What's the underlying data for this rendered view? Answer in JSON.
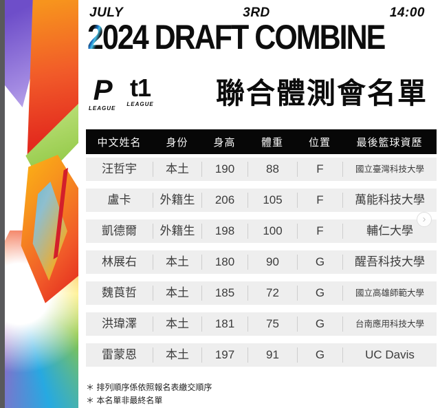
{
  "event": {
    "month": "JULY",
    "day": "3RD",
    "time": "14:00",
    "year_first": "2",
    "year_rest": "024 ",
    "title_rest": "DRAFT COMBINE"
  },
  "logos": {
    "p_league": {
      "glyph": "P",
      "label": "LEAGUE"
    },
    "t1_league": {
      "glyph": "t1",
      "label": "LEAGUE"
    }
  },
  "page_title": "聯合體測會名單",
  "table": {
    "headers": [
      "中文姓名",
      "身份",
      "身高",
      "體重",
      "位置",
      "最後籃球資歷"
    ],
    "rows": [
      [
        "汪哲宇",
        "本土",
        "190",
        "88",
        "F",
        "國立臺灣科技大學"
      ],
      [
        "盧卡",
        "外籍生",
        "206",
        "105",
        "F",
        "萬能科技大學"
      ],
      [
        "凱德爾",
        "外籍生",
        "198",
        "100",
        "F",
        "輔仁大學"
      ],
      [
        "林展右",
        "本土",
        "180",
        "90",
        "G",
        "醒吾科技大學"
      ],
      [
        "魏莨哲",
        "本土",
        "185",
        "72",
        "G",
        "國立高雄師範大學"
      ],
      [
        "洪瑋澤",
        "本土",
        "181",
        "75",
        "G",
        "台南應用科技大學"
      ],
      [
        "雷蒙恩",
        "本土",
        "197",
        "91",
        "G",
        "UC Davis"
      ]
    ],
    "column_names": [
      "name",
      "status",
      "height",
      "weight",
      "position",
      "school"
    ]
  },
  "notes": [
    "＊ 排列順序係依照報名表繳交順序",
    "＊ 本名單非最終名單"
  ],
  "carousel": {
    "next_icon": "›"
  },
  "art_band": {
    "colors": {
      "strip_gray": "#59595b",
      "purple": "#6e4ec9",
      "orange": "#f7941d",
      "red": "#ef4123",
      "green": "#8cc63f",
      "blue": "#27a9e1",
      "yellow": "#ffe94d"
    }
  },
  "text_colors": {
    "heading": "#0d0d0d",
    "row_text": "#3c3c3c",
    "header_bar_bg": "#070707",
    "row_bg": "#eeeeee"
  }
}
